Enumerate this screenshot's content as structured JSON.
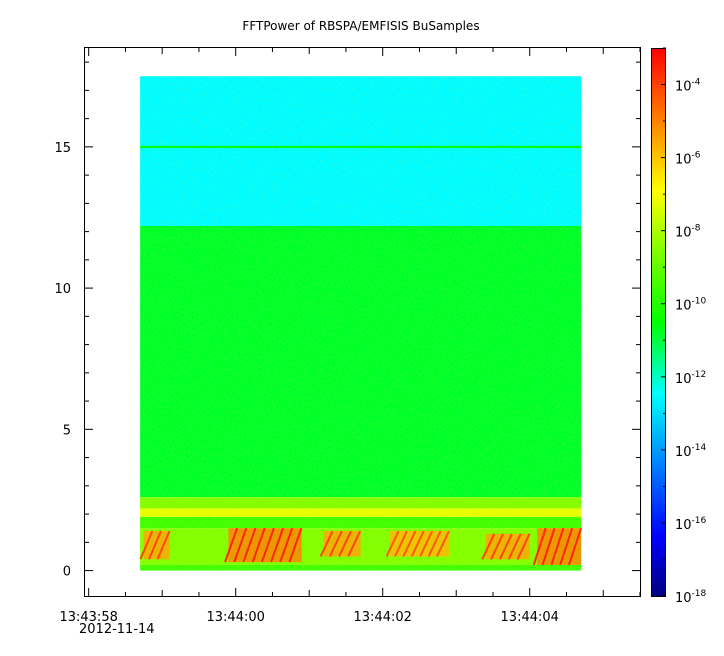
{
  "chart_data": {
    "type": "heatmap",
    "title": "FFTPower of RBSPA/EMFISIS  BuSamples",
    "xlabel": "",
    "ylabel": "",
    "x_ticks": [
      {
        "time": "13:43:58",
        "label": "13:43:58"
      },
      {
        "time": "13:44:00",
        "label": "13:44:00"
      },
      {
        "time": "13:44:02",
        "label": "13:44:02"
      },
      {
        "time": "13:44:04",
        "label": "13:44:04"
      }
    ],
    "x_date_label": "2012-11-14",
    "x_range": [
      "13:43:57.95",
      "13:44:05.50"
    ],
    "x_data_range": [
      "13:43:58.70",
      "13:44:04.70"
    ],
    "y_ticks": [
      0,
      5,
      10,
      15
    ],
    "y_range": [
      -0.9,
      18.5
    ],
    "y_data_range": [
      0,
      17.5
    ],
    "colorbar": {
      "scale": "log",
      "range": [
        1e-18,
        0.001
      ],
      "tick_values": [
        0.0001,
        1e-06,
        1e-08,
        1e-10,
        1e-12,
        1e-14,
        1e-16,
        1e-18
      ],
      "tick_base": "10",
      "tick_exponents": [
        "-4",
        "-6",
        "-8",
        "-10",
        "-12",
        "-14",
        "-16",
        "-18"
      ]
    },
    "bands": [
      {
        "y": [
          12.2,
          17.5
        ],
        "log_power": -12.5
      },
      {
        "y": [
          2.6,
          12.2
        ],
        "log_power": -10.8
      },
      {
        "y": [
          2.2,
          2.6
        ],
        "log_power": -8.5
      },
      {
        "y": [
          1.9,
          2.2
        ],
        "log_power": -7.2
      },
      {
        "y": [
          1.5,
          1.9
        ],
        "log_power": -9.5
      },
      {
        "y": [
          0.2,
          1.5
        ],
        "log_power": -8.5
      },
      {
        "y": [
          0,
          0.2
        ],
        "log_power": -9.5
      }
    ],
    "lines": [
      {
        "y": 15.0,
        "log_power": -10.5
      }
    ],
    "bursts": [
      {
        "x": [
          "13:43:58.75",
          "13:43:59.10"
        ],
        "y": [
          0.4,
          1.4
        ],
        "log_power": -5.5
      },
      {
        "x": [
          "13:43:59.90",
          "13:44:00.90"
        ],
        "y": [
          0.3,
          1.5
        ],
        "log_power": -5.0
      },
      {
        "x": [
          "13:44:01.20",
          "13:44:01.70"
        ],
        "y": [
          0.5,
          1.4
        ],
        "log_power": -5.5
      },
      {
        "x": [
          "13:44:02.10",
          "13:44:02.90"
        ],
        "y": [
          0.5,
          1.4
        ],
        "log_power": -5.8
      },
      {
        "x": [
          "13:44:03.40",
          "13:44:04.00"
        ],
        "y": [
          0.4,
          1.3
        ],
        "log_power": -5.5
      },
      {
        "x": [
          "13:44:04.10",
          "13:44:04.70"
        ],
        "y": [
          0.2,
          1.5
        ],
        "log_power": -5.0
      }
    ]
  }
}
